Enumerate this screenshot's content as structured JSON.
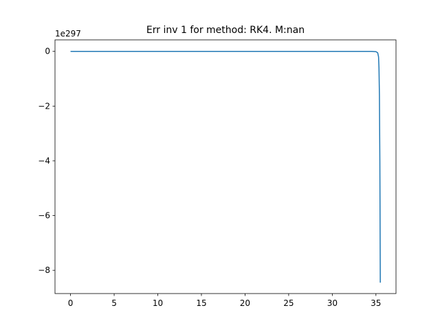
{
  "chart_data": {
    "type": "line",
    "title": "Err inv 1 for method: RK4. M:nan",
    "xlabel": "",
    "ylabel": "",
    "y_offset_label": "1e297",
    "xlim": [
      -1.78,
      37.3
    ],
    "ylim": [
      -8.85,
      0.42
    ],
    "x_ticks": [
      0,
      5,
      10,
      15,
      20,
      25,
      30,
      35
    ],
    "x_tick_labels": [
      "0",
      "5",
      "10",
      "15",
      "20",
      "25",
      "30",
      "35"
    ],
    "y_ticks": [
      0,
      -2,
      -4,
      -6,
      -8
    ],
    "y_tick_labels": [
      "0",
      "−2",
      "−4",
      "−6",
      "−8"
    ],
    "grid": false,
    "legend": "none",
    "series": [
      {
        "color": "#1f77b4",
        "x": [
          0,
          5,
          10,
          15,
          20,
          25,
          30,
          34.5,
          35.0,
          35.2,
          35.3,
          35.35,
          35.4,
          35.45,
          35.5
        ],
        "y": [
          0,
          0,
          0,
          0,
          0,
          0,
          0,
          0,
          -0.01,
          -0.05,
          -0.2,
          -0.6,
          -1.6,
          -4.0,
          -8.45
        ]
      }
    ]
  }
}
